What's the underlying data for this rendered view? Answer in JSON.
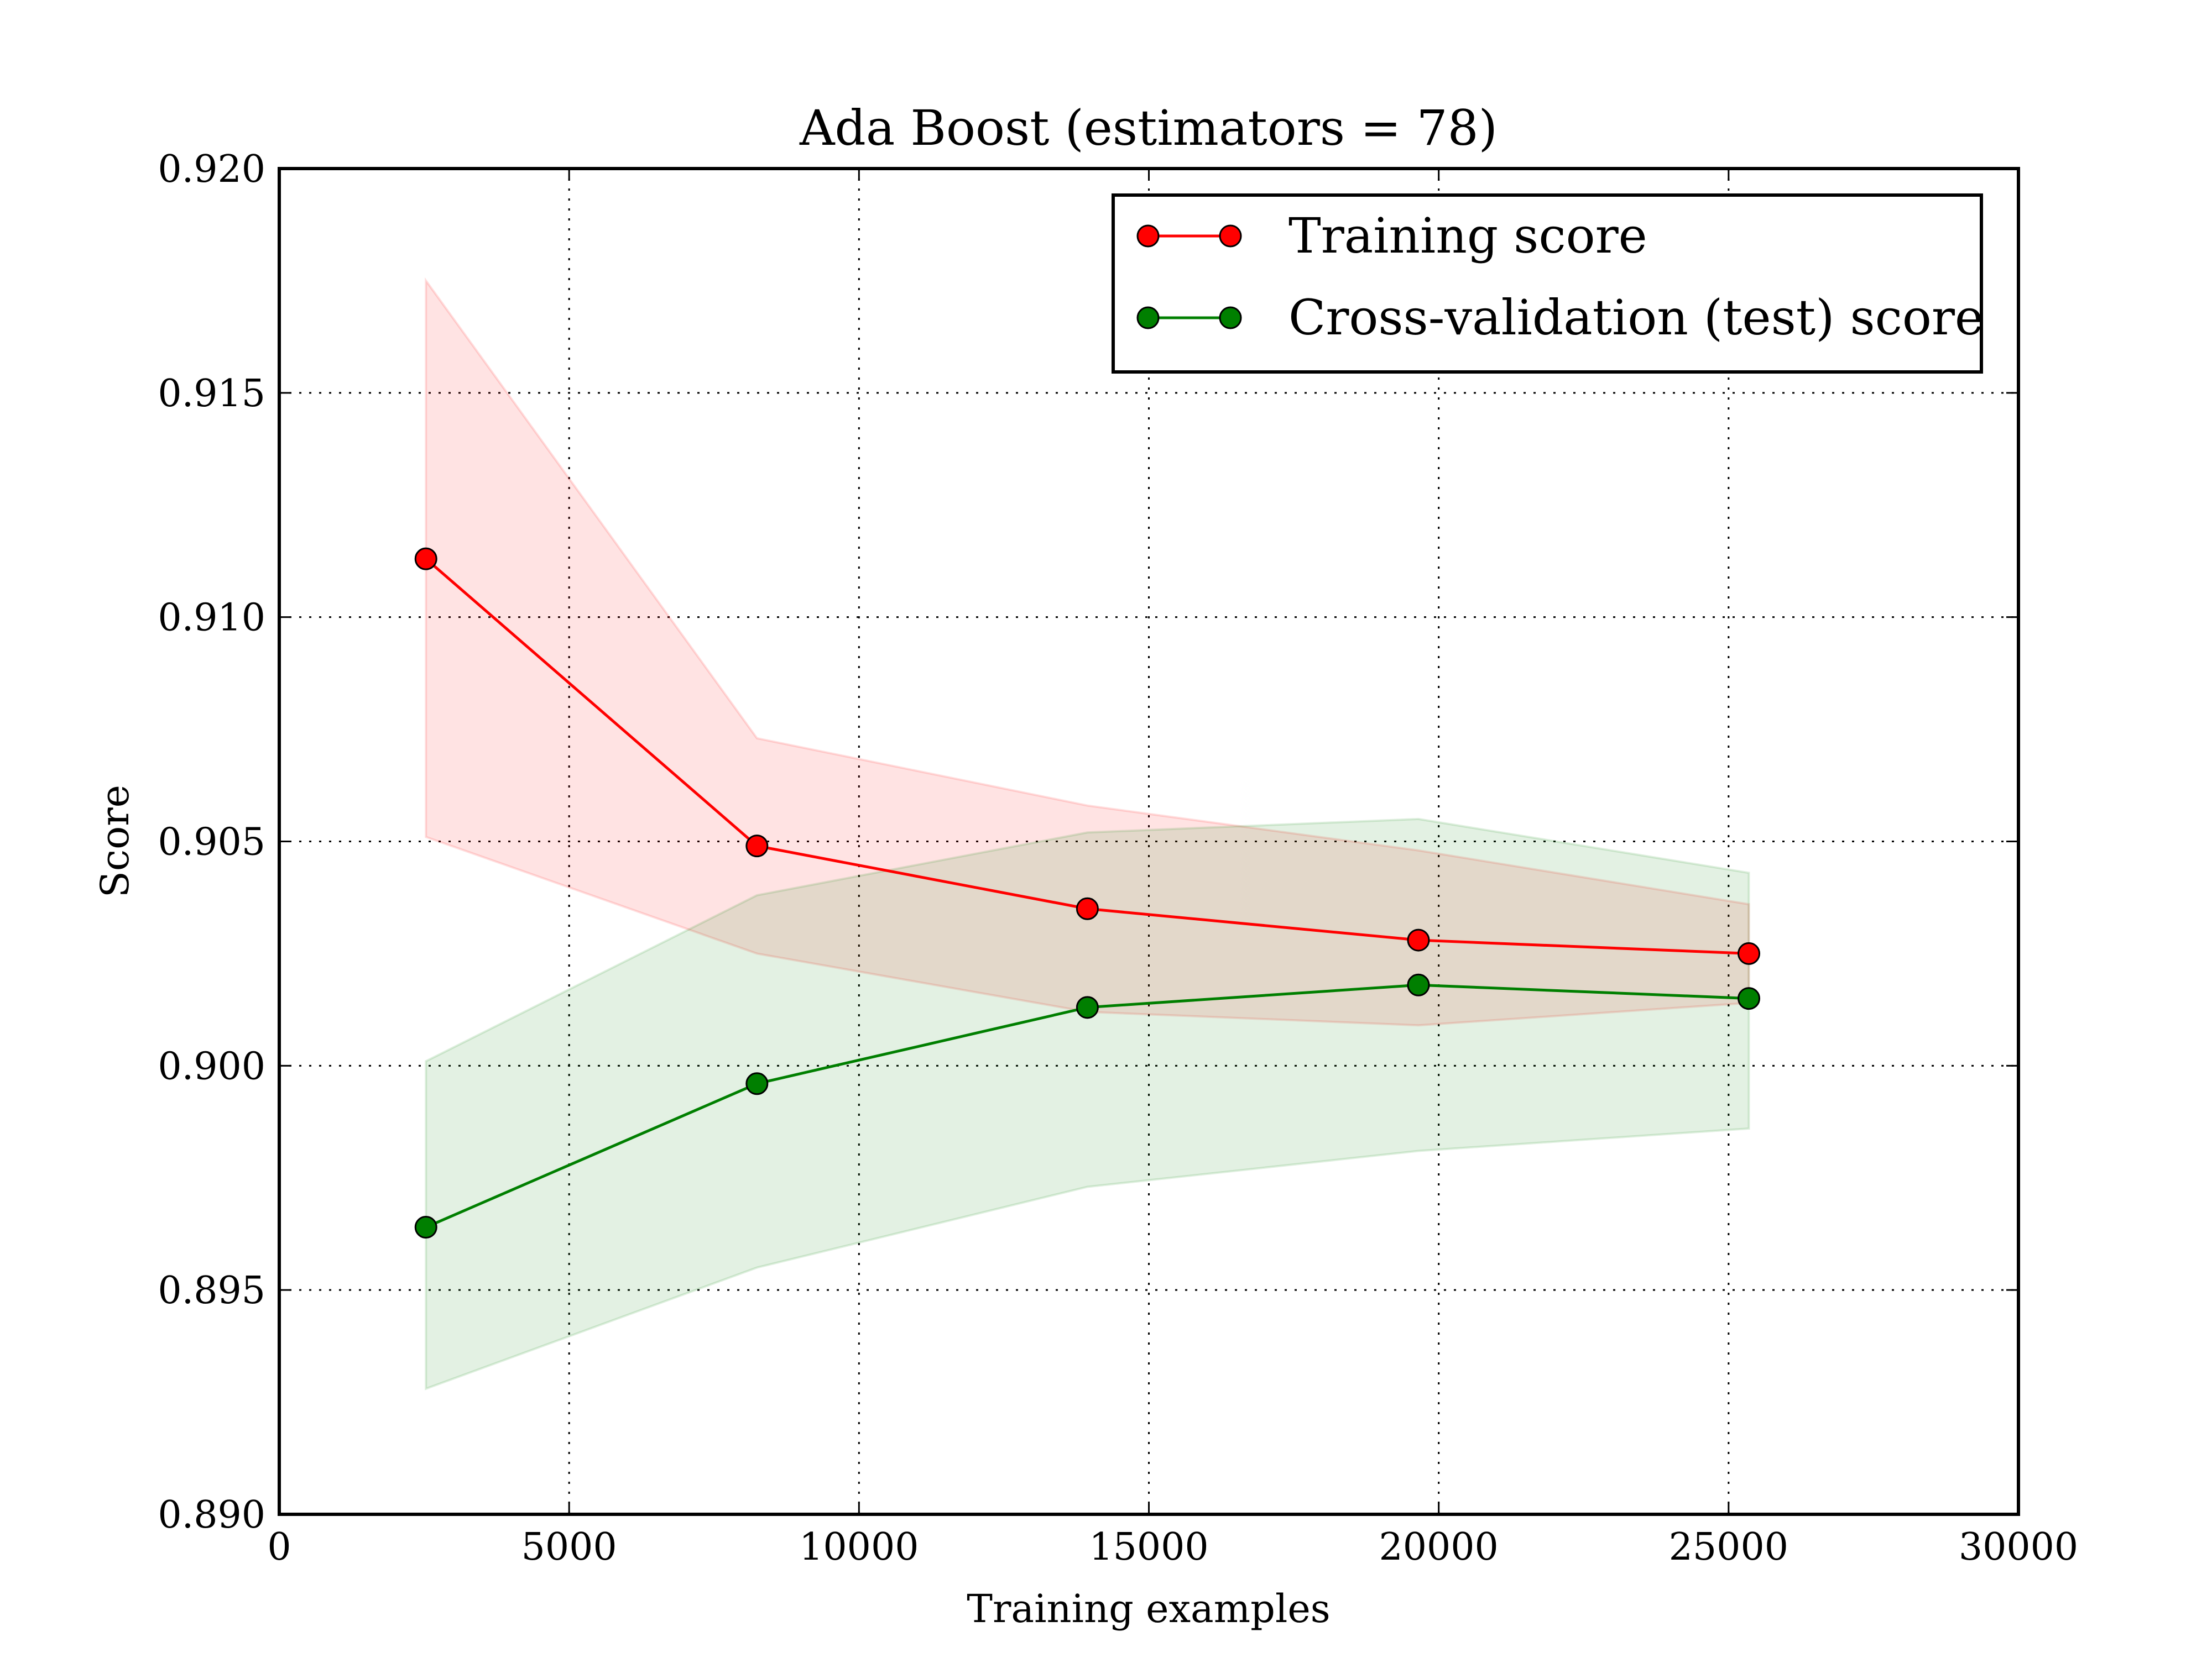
{
  "chart_data": {
    "type": "line",
    "title": "Ada Boost (estimators = 78)",
    "xlabel": "Training examples",
    "ylabel": "Score",
    "xlim": [
      0,
      30000
    ],
    "ylim": [
      0.89,
      0.92
    ],
    "xticks": [
      0,
      5000,
      10000,
      15000,
      20000,
      25000,
      30000
    ],
    "xtick_labels": [
      "0",
      "5000",
      "10000",
      "15000",
      "20000",
      "25000",
      "30000"
    ],
    "yticks": [
      0.89,
      0.895,
      0.9,
      0.905,
      0.91,
      0.915,
      0.92
    ],
    "ytick_labels": [
      "0.890",
      "0.895",
      "0.900",
      "0.905",
      "0.910",
      "0.915",
      "0.920"
    ],
    "grid": true,
    "legend_position": "top-right",
    "x": [
      2530,
      8240,
      13940,
      19650,
      25350
    ],
    "series": [
      {
        "name": "Training score",
        "color": "#ff0000",
        "fill_color": "#ff0000",
        "marker": "circle",
        "values": [
          0.9113,
          0.9049,
          0.9035,
          0.9028,
          0.9025
        ],
        "band_upper": [
          0.9175,
          0.9073,
          0.9058,
          0.9048,
          0.9036
        ],
        "band_lower": [
          0.9051,
          0.9025,
          0.9012,
          0.9009,
          0.9014
        ]
      },
      {
        "name": "Cross-validation (test) score",
        "color": "#007f00",
        "fill_color": "#008000",
        "marker": "circle",
        "values": [
          0.8964,
          0.8996,
          0.9013,
          0.9018,
          0.9015
        ],
        "band_upper": [
          0.9001,
          0.9038,
          0.9052,
          0.9055,
          0.9043
        ],
        "band_lower": [
          0.8928,
          0.8955,
          0.8973,
          0.8981,
          0.8986
        ]
      }
    ]
  }
}
